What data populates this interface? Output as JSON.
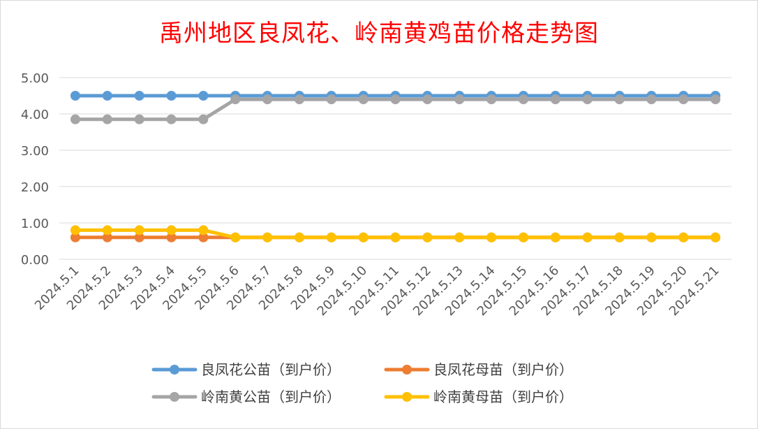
{
  "chart_data": {
    "type": "line",
    "title": "禹州地区良凤花、岭南黄鸡苗价格走势图",
    "xlabel": "",
    "ylabel": "",
    "ylim": [
      0,
      5
    ],
    "yticks": [
      "0.00",
      "1.00",
      "2.00",
      "3.00",
      "4.00",
      "5.00"
    ],
    "grid": true,
    "legend_position": "bottom",
    "categories": [
      "2024.5.1",
      "2024.5.2",
      "2024.5.3",
      "2024.5.4",
      "2024.5.5",
      "2024.5.6",
      "2024.5.7",
      "2024.5.8",
      "2024.5.9",
      "2024.5.10",
      "2024.5.11",
      "2024.5.12",
      "2024.5.13",
      "2024.5.14",
      "2024.5.15",
      "2024.5.16",
      "2024.5.17",
      "2024.5.18",
      "2024.5.19",
      "2024.5.20",
      "2024.5.21"
    ],
    "series": [
      {
        "name": "良凤花公苗（到户价）",
        "color": "#5b9bd5",
        "values": [
          4.5,
          4.5,
          4.5,
          4.5,
          4.5,
          4.5,
          4.5,
          4.5,
          4.5,
          4.5,
          4.5,
          4.5,
          4.5,
          4.5,
          4.5,
          4.5,
          4.5,
          4.5,
          4.5,
          4.5,
          4.5
        ]
      },
      {
        "name": "良凤花母苗（到户价）",
        "color": "#ed7d31",
        "values": [
          0.6,
          0.6,
          0.6,
          0.6,
          0.6,
          0.6,
          0.6,
          0.6,
          0.6,
          0.6,
          0.6,
          0.6,
          0.6,
          0.6,
          0.6,
          0.6,
          0.6,
          0.6,
          0.6,
          0.6,
          0.6
        ]
      },
      {
        "name": "岭南黄公苗（到户价）",
        "color": "#a5a5a5",
        "values": [
          3.85,
          3.85,
          3.85,
          3.85,
          3.85,
          4.4,
          4.4,
          4.4,
          4.4,
          4.4,
          4.4,
          4.4,
          4.4,
          4.4,
          4.4,
          4.4,
          4.4,
          4.4,
          4.4,
          4.4,
          4.4
        ]
      },
      {
        "name": "岭南黄母苗（到户价）",
        "color": "#ffc000",
        "values": [
          0.8,
          0.8,
          0.8,
          0.8,
          0.8,
          0.6,
          0.6,
          0.6,
          0.6,
          0.6,
          0.6,
          0.6,
          0.6,
          0.6,
          0.6,
          0.6,
          0.6,
          0.6,
          0.6,
          0.6,
          0.6
        ]
      }
    ]
  }
}
